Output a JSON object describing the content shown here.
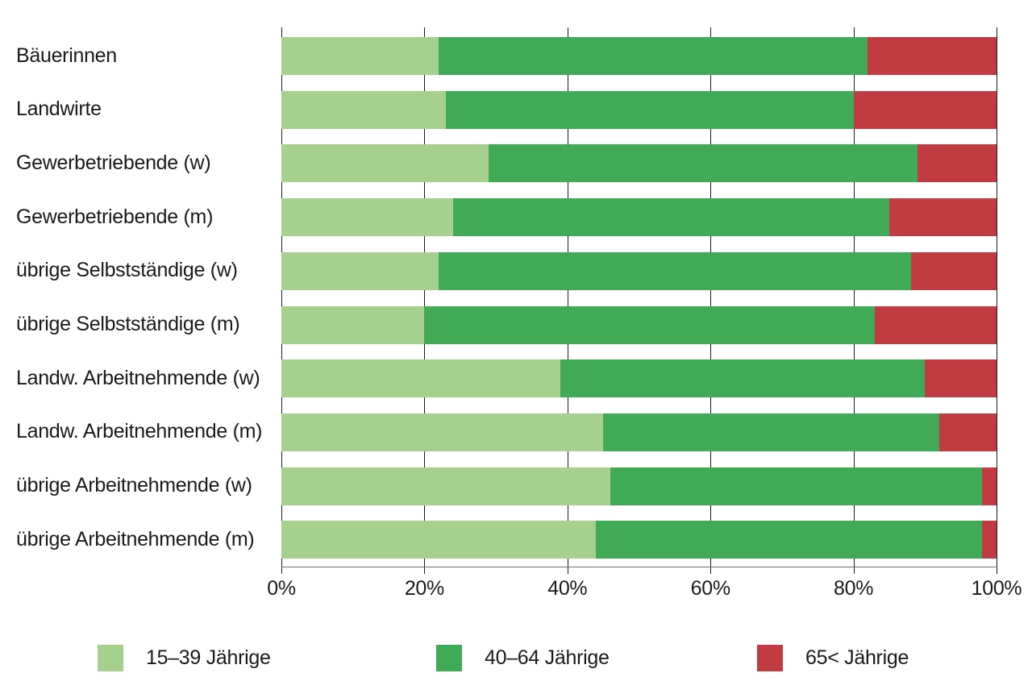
{
  "chart_data": {
    "type": "bar",
    "variant": "horizontal-stacked-100pct",
    "title": "",
    "xlabel": "",
    "ylabel": "",
    "categories": [
      "Bäuerinnen",
      "Landwirte",
      "Gewerbetriebende (w)",
      "Gewerbetriebende (m)",
      "übrige Selbstständige (w)",
      "übrige Selbstständige (m)",
      "Landw. Arbeitnehmende (w)",
      "Landw. Arbeitnehmende (m)",
      "übrige Arbeitnehmende (w)",
      "übrige Arbeitnehmende (m)"
    ],
    "series": [
      {
        "name": "15–39 Jährige",
        "color": "#a5d08d",
        "values": [
          22,
          23,
          29,
          24,
          22,
          20,
          39,
          45,
          46,
          44
        ]
      },
      {
        "name": "40–64 Jährige",
        "color": "#40aa56",
        "values": [
          60,
          57,
          60,
          61,
          66,
          63,
          51,
          47,
          52,
          54
        ]
      },
      {
        "name": "65< Jährige",
        "color": "#c13b42",
        "values": [
          18,
          20,
          11,
          15,
          12,
          17,
          10,
          8,
          2,
          2
        ]
      }
    ],
    "x_axis": {
      "min": 0,
      "max": 100,
      "tick_labels": [
        "0%",
        "20%",
        "40%",
        "60%",
        "80%",
        "100%"
      ],
      "grid": true
    },
    "legend": {
      "position": "bottom",
      "items": [
        "15–39 Jährige",
        "40–64 Jährige",
        "65< Jährige"
      ]
    },
    "colors": {
      "grid": "#1a1a1a",
      "axis_line": "#6e6e6e",
      "text": "#1a1a1a",
      "background": "#ffffff"
    }
  }
}
